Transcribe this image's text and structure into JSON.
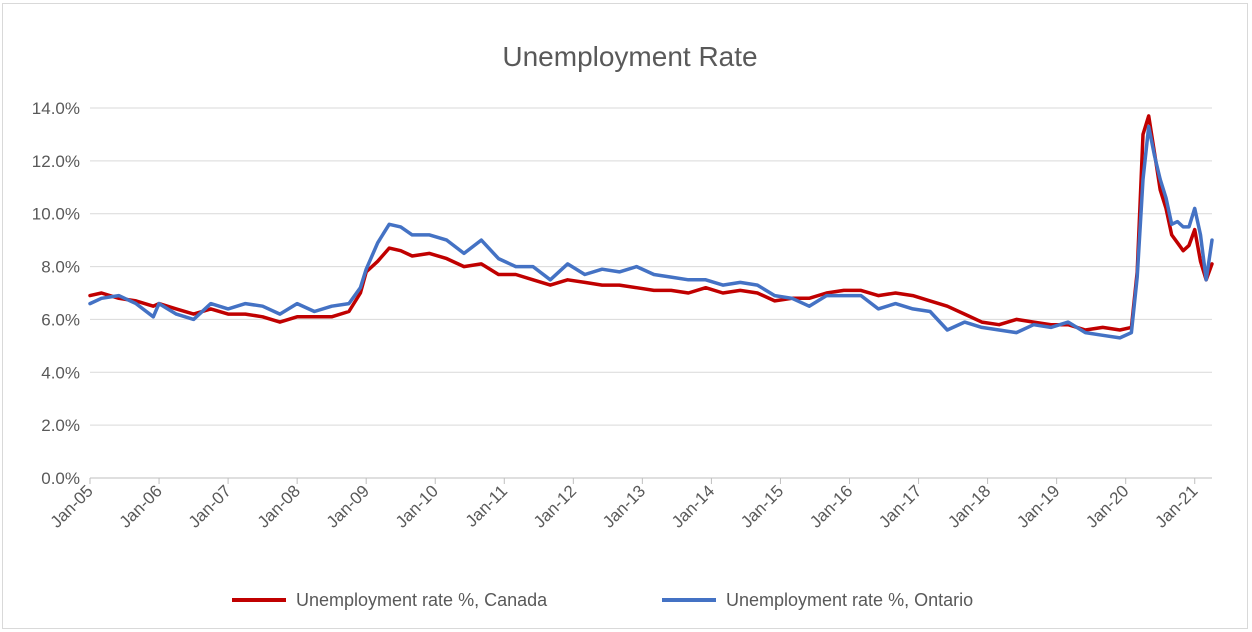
{
  "chart_data": {
    "type": "line",
    "title": "Unemployment Rate",
    "xlabel": "",
    "ylabel": "",
    "ylim": [
      0,
      14
    ],
    "yticks": [
      "0.0%",
      "2.0%",
      "4.0%",
      "6.0%",
      "8.0%",
      "10.0%",
      "12.0%",
      "14.0%"
    ],
    "xticks": [
      "Jan-05",
      "Jan-06",
      "Jan-07",
      "Jan-08",
      "Jan-09",
      "Jan-10",
      "Jan-11",
      "Jan-12",
      "Jan-13",
      "Jan-14",
      "Jan-15",
      "Jan-16",
      "Jan-17",
      "Jan-18",
      "Jan-19",
      "Jan-20",
      "Jan-21"
    ],
    "grid": true,
    "legend": "bottom",
    "x_range": [
      "2005-01",
      "2021-04"
    ],
    "series": [
      {
        "name": "Unemployment rate %, Canada",
        "color": "#c00000",
        "points": [
          [
            "2005-01",
            6.9
          ],
          [
            "2005-03",
            7.0
          ],
          [
            "2005-06",
            6.8
          ],
          [
            "2005-09",
            6.7
          ],
          [
            "2005-12",
            6.5
          ],
          [
            "2006-01",
            6.6
          ],
          [
            "2006-04",
            6.4
          ],
          [
            "2006-07",
            6.2
          ],
          [
            "2006-10",
            6.4
          ],
          [
            "2007-01",
            6.2
          ],
          [
            "2007-04",
            6.2
          ],
          [
            "2007-07",
            6.1
          ],
          [
            "2007-10",
            5.9
          ],
          [
            "2008-01",
            6.1
          ],
          [
            "2008-04",
            6.1
          ],
          [
            "2008-07",
            6.1
          ],
          [
            "2008-10",
            6.3
          ],
          [
            "2008-12",
            7.0
          ],
          [
            "2009-01",
            7.8
          ],
          [
            "2009-03",
            8.2
          ],
          [
            "2009-05",
            8.7
          ],
          [
            "2009-07",
            8.6
          ],
          [
            "2009-09",
            8.4
          ],
          [
            "2009-12",
            8.5
          ],
          [
            "2010-03",
            8.3
          ],
          [
            "2010-06",
            8.0
          ],
          [
            "2010-09",
            8.1
          ],
          [
            "2010-12",
            7.7
          ],
          [
            "2011-03",
            7.7
          ],
          [
            "2011-06",
            7.5
          ],
          [
            "2011-09",
            7.3
          ],
          [
            "2011-12",
            7.5
          ],
          [
            "2012-03",
            7.4
          ],
          [
            "2012-06",
            7.3
          ],
          [
            "2012-09",
            7.3
          ],
          [
            "2012-12",
            7.2
          ],
          [
            "2013-03",
            7.1
          ],
          [
            "2013-06",
            7.1
          ],
          [
            "2013-09",
            7.0
          ],
          [
            "2013-12",
            7.2
          ],
          [
            "2014-03",
            7.0
          ],
          [
            "2014-06",
            7.1
          ],
          [
            "2014-09",
            7.0
          ],
          [
            "2014-12",
            6.7
          ],
          [
            "2015-03",
            6.8
          ],
          [
            "2015-06",
            6.8
          ],
          [
            "2015-09",
            7.0
          ],
          [
            "2015-12",
            7.1
          ],
          [
            "2016-03",
            7.1
          ],
          [
            "2016-06",
            6.9
          ],
          [
            "2016-09",
            7.0
          ],
          [
            "2016-12",
            6.9
          ],
          [
            "2017-03",
            6.7
          ],
          [
            "2017-06",
            6.5
          ],
          [
            "2017-09",
            6.2
          ],
          [
            "2017-12",
            5.9
          ],
          [
            "2018-03",
            5.8
          ],
          [
            "2018-06",
            6.0
          ],
          [
            "2018-09",
            5.9
          ],
          [
            "2018-12",
            5.8
          ],
          [
            "2019-03",
            5.8
          ],
          [
            "2019-06",
            5.6
          ],
          [
            "2019-09",
            5.7
          ],
          [
            "2019-12",
            5.6
          ],
          [
            "2020-02",
            5.7
          ],
          [
            "2020-03",
            7.8
          ],
          [
            "2020-04",
            13.0
          ],
          [
            "2020-05",
            13.7
          ],
          [
            "2020-06",
            12.3
          ],
          [
            "2020-07",
            10.9
          ],
          [
            "2020-08",
            10.2
          ],
          [
            "2020-09",
            9.2
          ],
          [
            "2020-10",
            8.9
          ],
          [
            "2020-11",
            8.6
          ],
          [
            "2020-12",
            8.8
          ],
          [
            "2021-01",
            9.4
          ],
          [
            "2021-02",
            8.2
          ],
          [
            "2021-03",
            7.5
          ],
          [
            "2021-04",
            8.1
          ]
        ]
      },
      {
        "name": "Unemployment rate %, Ontario",
        "color": "#4472c4",
        "points": [
          [
            "2005-01",
            6.6
          ],
          [
            "2005-03",
            6.8
          ],
          [
            "2005-06",
            6.9
          ],
          [
            "2005-09",
            6.6
          ],
          [
            "2005-12",
            6.1
          ],
          [
            "2006-01",
            6.6
          ],
          [
            "2006-04",
            6.2
          ],
          [
            "2006-07",
            6.0
          ],
          [
            "2006-10",
            6.6
          ],
          [
            "2007-01",
            6.4
          ],
          [
            "2007-04",
            6.6
          ],
          [
            "2007-07",
            6.5
          ],
          [
            "2007-10",
            6.2
          ],
          [
            "2008-01",
            6.6
          ],
          [
            "2008-04",
            6.3
          ],
          [
            "2008-07",
            6.5
          ],
          [
            "2008-10",
            6.6
          ],
          [
            "2008-12",
            7.2
          ],
          [
            "2009-01",
            7.9
          ],
          [
            "2009-03",
            8.9
          ],
          [
            "2009-05",
            9.6
          ],
          [
            "2009-07",
            9.5
          ],
          [
            "2009-09",
            9.2
          ],
          [
            "2009-12",
            9.2
          ],
          [
            "2010-03",
            9.0
          ],
          [
            "2010-06",
            8.5
          ],
          [
            "2010-09",
            9.0
          ],
          [
            "2010-12",
            8.3
          ],
          [
            "2011-03",
            8.0
          ],
          [
            "2011-06",
            8.0
          ],
          [
            "2011-09",
            7.5
          ],
          [
            "2011-12",
            8.1
          ],
          [
            "2012-03",
            7.7
          ],
          [
            "2012-06",
            7.9
          ],
          [
            "2012-09",
            7.8
          ],
          [
            "2012-12",
            8.0
          ],
          [
            "2013-03",
            7.7
          ],
          [
            "2013-06",
            7.6
          ],
          [
            "2013-09",
            7.5
          ],
          [
            "2013-12",
            7.5
          ],
          [
            "2014-03",
            7.3
          ],
          [
            "2014-06",
            7.4
          ],
          [
            "2014-09",
            7.3
          ],
          [
            "2014-12",
            6.9
          ],
          [
            "2015-03",
            6.8
          ],
          [
            "2015-06",
            6.5
          ],
          [
            "2015-09",
            6.9
          ],
          [
            "2015-12",
            6.9
          ],
          [
            "2016-03",
            6.9
          ],
          [
            "2016-06",
            6.4
          ],
          [
            "2016-09",
            6.6
          ],
          [
            "2016-12",
            6.4
          ],
          [
            "2017-03",
            6.3
          ],
          [
            "2017-06",
            5.6
          ],
          [
            "2017-09",
            5.9
          ],
          [
            "2017-12",
            5.7
          ],
          [
            "2018-03",
            5.6
          ],
          [
            "2018-06",
            5.5
          ],
          [
            "2018-09",
            5.8
          ],
          [
            "2018-12",
            5.7
          ],
          [
            "2019-03",
            5.9
          ],
          [
            "2019-06",
            5.5
          ],
          [
            "2019-09",
            5.4
          ],
          [
            "2019-12",
            5.3
          ],
          [
            "2020-02",
            5.5
          ],
          [
            "2020-03",
            7.6
          ],
          [
            "2020-04",
            11.3
          ],
          [
            "2020-05",
            13.3
          ],
          [
            "2020-06",
            12.2
          ],
          [
            "2020-07",
            11.3
          ],
          [
            "2020-08",
            10.6
          ],
          [
            "2020-09",
            9.6
          ],
          [
            "2020-10",
            9.7
          ],
          [
            "2020-11",
            9.5
          ],
          [
            "2020-12",
            9.5
          ],
          [
            "2021-01",
            10.2
          ],
          [
            "2021-02",
            9.2
          ],
          [
            "2021-03",
            7.5
          ],
          [
            "2021-04",
            9.0
          ]
        ]
      }
    ]
  }
}
